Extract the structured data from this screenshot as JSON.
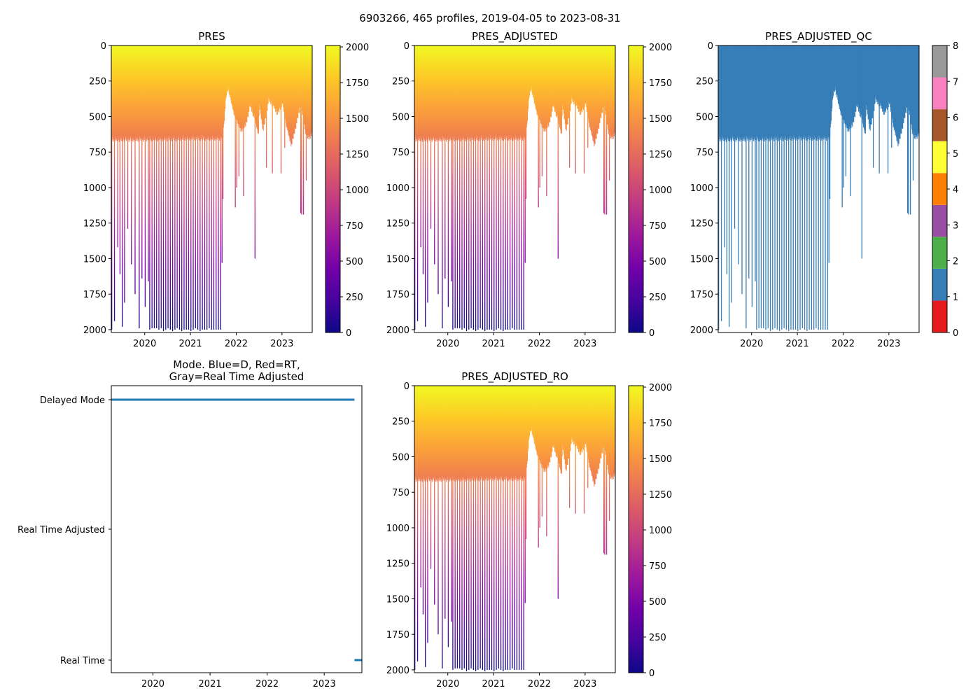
{
  "figure": {
    "suptitle": "6903266, 465 profiles, 2019-04-05 to 2023-08-31"
  },
  "colors": {
    "plasma_stops": [
      "#0d0887",
      "#46039f",
      "#7201a8",
      "#9c179e",
      "#bd3786",
      "#d8576b",
      "#ed7953",
      "#fb9f3a",
      "#fdca26",
      "#f0f921"
    ],
    "qc_classes": [
      "#e41a1c",
      "#377eb8",
      "#4daf4a",
      "#984ea3",
      "#ff7f00",
      "#ffff33",
      "#a65628",
      "#f781bf",
      "#999999"
    ],
    "mode_line": "#1f77b4"
  },
  "chart_data": [
    {
      "id": "pres",
      "type": "heatmap",
      "title": "PRES",
      "xlabel": "",
      "ylabel": "",
      "xlim": [
        2019.27,
        2023.66
      ],
      "ylim": [
        2020,
        0
      ],
      "x_ticks": [
        2020,
        2021,
        2022,
        2023
      ],
      "x_tick_labels": [
        "2020",
        "2021",
        "2022",
        "2023"
      ],
      "y_ticks": [
        0,
        250,
        500,
        750,
        1000,
        1250,
        1500,
        1750,
        2000
      ],
      "y_tick_labels": [
        "0",
        "250",
        "500",
        "750",
        "1000",
        "1250",
        "1500",
        "1750",
        "2000"
      ],
      "colorbar": {
        "colormap": "plasma_r",
        "range": [
          0,
          2010
        ],
        "ticks": [
          0,
          250,
          500,
          750,
          1000,
          1250,
          1500,
          1750,
          2000
        ],
        "tick_labels": [
          "0",
          "250",
          "500",
          "750",
          "1000",
          "1250",
          "1500",
          "1750",
          "2000"
        ]
      },
      "profile_depth_series": "float_6903266"
    },
    {
      "id": "pres_adjusted",
      "type": "heatmap",
      "title": "PRES_ADJUSTED",
      "xlabel": "",
      "ylabel": "",
      "xlim": [
        2019.27,
        2023.66
      ],
      "ylim": [
        2020,
        0
      ],
      "x_ticks": [
        2020,
        2021,
        2022,
        2023
      ],
      "x_tick_labels": [
        "2020",
        "2021",
        "2022",
        "2023"
      ],
      "y_ticks": [
        0,
        250,
        500,
        750,
        1000,
        1250,
        1500,
        1750,
        2000
      ],
      "y_tick_labels": [
        "0",
        "250",
        "500",
        "750",
        "1000",
        "1250",
        "1500",
        "1750",
        "2000"
      ],
      "colorbar": {
        "colormap": "plasma_r",
        "range": [
          0,
          2010
        ],
        "ticks": [
          0,
          250,
          500,
          750,
          1000,
          1250,
          1500,
          1750,
          2000
        ],
        "tick_labels": [
          "0",
          "250",
          "500",
          "750",
          "1000",
          "1250",
          "1500",
          "1750",
          "2000"
        ]
      },
      "profile_depth_series": "float_6903266"
    },
    {
      "id": "pres_adjusted_qc",
      "type": "heatmap",
      "title": "PRES_ADJUSTED_QC",
      "xlabel": "",
      "ylabel": "",
      "xlim": [
        2019.27,
        2023.66
      ],
      "ylim": [
        2020,
        0
      ],
      "x_ticks": [
        2020,
        2021,
        2022,
        2023
      ],
      "x_tick_labels": [
        "2020",
        "2021",
        "2022",
        "2023"
      ],
      "y_ticks": [
        0,
        250,
        500,
        750,
        1000,
        1250,
        1500,
        1750,
        2000
      ],
      "y_tick_labels": [
        "0",
        "250",
        "500",
        "750",
        "1000",
        "1250",
        "1500",
        "1750",
        "2000"
      ],
      "dominant_qc_value": 1,
      "colorbar": {
        "colormap": "qc_classes",
        "range": [
          0,
          8
        ],
        "ticks": [
          0,
          1,
          2,
          3,
          4,
          5,
          6,
          7,
          8
        ],
        "tick_labels": [
          "0",
          "1",
          "2",
          "3",
          "4",
          "5",
          "6",
          "7",
          "8"
        ]
      },
      "profile_depth_series": "float_6903266"
    },
    {
      "id": "mode",
      "type": "line",
      "title": "Mode. Blue=D, Red=RT,",
      "title_line2": "Gray=Real Time Adjusted",
      "xlabel": "",
      "ylabel": "",
      "xlim": [
        2019.27,
        2023.66
      ],
      "x_ticks": [
        2020,
        2021,
        2022,
        2023
      ],
      "x_tick_labels": [
        "2020",
        "2021",
        "2022",
        "2023"
      ],
      "y_categories": [
        "Delayed Mode",
        "Real Time Adjusted",
        "Real Time"
      ],
      "series": [
        {
          "name": "Delayed Mode",
          "x_range": [
            2019.27,
            2023.53
          ],
          "category": "Delayed Mode"
        },
        {
          "name": "Real Time",
          "x_range": [
            2023.53,
            2023.66
          ],
          "category": "Real Time"
        }
      ]
    },
    {
      "id": "pres_adjusted_ro",
      "type": "heatmap",
      "title": "PRES_ADJUSTED_RO",
      "xlabel": "",
      "ylabel": "",
      "xlim": [
        2019.27,
        2023.66
      ],
      "ylim": [
        2020,
        0
      ],
      "x_ticks": [
        2020,
        2021,
        2022,
        2023
      ],
      "x_tick_labels": [
        "2020",
        "2021",
        "2022",
        "2023"
      ],
      "y_ticks": [
        0,
        250,
        500,
        750,
        1000,
        1250,
        1500,
        1750,
        2000
      ],
      "y_tick_labels": [
        "0",
        "250",
        "500",
        "750",
        "1000",
        "1250",
        "1500",
        "1750",
        "2000"
      ],
      "colorbar": {
        "colormap": "plasma_r",
        "range": [
          0,
          2010
        ],
        "ticks": [
          0,
          250,
          500,
          750,
          1000,
          1250,
          1500,
          1750,
          2000
        ],
        "tick_labels": [
          "0",
          "250",
          "500",
          "750",
          "1000",
          "1250",
          "1500",
          "1750",
          "2000"
        ]
      },
      "profile_depth_series": "float_6903266"
    }
  ],
  "profile_series": {
    "float_6903266": {
      "count": 465,
      "start": 2019.26,
      "end": 2023.665,
      "coverage_note": "each profile drawn as a vertical strip from the surface to its max pressure (dbar); deep spikes are the ~2000 dbar dives",
      "base_depth_knots": [
        [
          2019.26,
          660
        ],
        [
          2021.7,
          650
        ],
        [
          2021.72,
          560
        ],
        [
          2021.75,
          440
        ],
        [
          2021.78,
          340
        ],
        [
          2021.82,
          300
        ],
        [
          2021.87,
          380
        ],
        [
          2021.95,
          480
        ],
        [
          2022.1,
          600
        ],
        [
          2022.2,
          560
        ],
        [
          2022.3,
          420
        ],
        [
          2022.4,
          520
        ],
        [
          2022.48,
          620
        ],
        [
          2022.5,
          420
        ],
        [
          2022.58,
          600
        ],
        [
          2022.64,
          500
        ],
        [
          2022.7,
          380
        ],
        [
          2022.8,
          420
        ],
        [
          2022.9,
          480
        ],
        [
          2023.0,
          400
        ],
        [
          2023.1,
          580
        ],
        [
          2023.2,
          700
        ],
        [
          2023.3,
          560
        ],
        [
          2023.4,
          420
        ],
        [
          2023.45,
          480
        ],
        [
          2023.5,
          600
        ],
        [
          2023.56,
          650
        ],
        [
          2023.665,
          620
        ]
      ],
      "deep_profiles": [
        [
          2019.27,
          2000
        ],
        [
          2019.33,
          1940
        ],
        [
          2019.4,
          1420
        ],
        [
          2019.45,
          1610
        ],
        [
          2019.5,
          1980
        ],
        [
          2019.55,
          1810
        ],
        [
          2019.62,
          1290
        ],
        [
          2019.7,
          1540
        ],
        [
          2019.78,
          1750
        ],
        [
          2019.87,
          1990
        ],
        [
          2019.93,
          1640
        ],
        [
          2020.0,
          1840
        ],
        [
          2020.07,
          1660
        ],
        [
          2020.1,
          2000
        ],
        [
          2020.15,
          1990
        ],
        [
          2020.2,
          1990
        ],
        [
          2020.25,
          1990
        ],
        [
          2020.3,
          2000
        ],
        [
          2020.35,
          1990
        ],
        [
          2020.4,
          2010
        ],
        [
          2020.45,
          2000
        ],
        [
          2020.5,
          1990
        ],
        [
          2020.55,
          2000
        ],
        [
          2020.6,
          2010
        ],
        [
          2020.65,
          2000
        ],
        [
          2020.7,
          1990
        ],
        [
          2020.75,
          2000
        ],
        [
          2020.8,
          2010
        ],
        [
          2020.85,
          2000
        ],
        [
          2020.9,
          2000
        ],
        [
          2020.95,
          2000
        ],
        [
          2021.0,
          2010
        ],
        [
          2021.05,
          2000
        ],
        [
          2021.1,
          1990
        ],
        [
          2021.15,
          2000
        ],
        [
          2021.2,
          2010
        ],
        [
          2021.25,
          2000
        ],
        [
          2021.3,
          2000
        ],
        [
          2021.35,
          2000
        ],
        [
          2021.4,
          1990
        ],
        [
          2021.45,
          2000
        ],
        [
          2021.5,
          2000
        ],
        [
          2021.55,
          2000
        ],
        [
          2021.6,
          2000
        ],
        [
          2021.65,
          2000
        ],
        [
          2021.68,
          1530
        ],
        [
          2021.7,
          1080
        ],
        [
          2021.97,
          1140
        ],
        [
          2022.0,
          1000
        ],
        [
          2022.05,
          920
        ],
        [
          2022.15,
          1060
        ],
        [
          2022.4,
          1500
        ],
        [
          2022.65,
          860
        ],
        [
          2022.78,
          900
        ],
        [
          2022.97,
          900
        ],
        [
          2023.05,
          720
        ],
        [
          2023.4,
          1180
        ],
        [
          2023.42,
          1190
        ],
        [
          2023.46,
          1190
        ],
        [
          2023.52,
          950
        ]
      ]
    }
  }
}
